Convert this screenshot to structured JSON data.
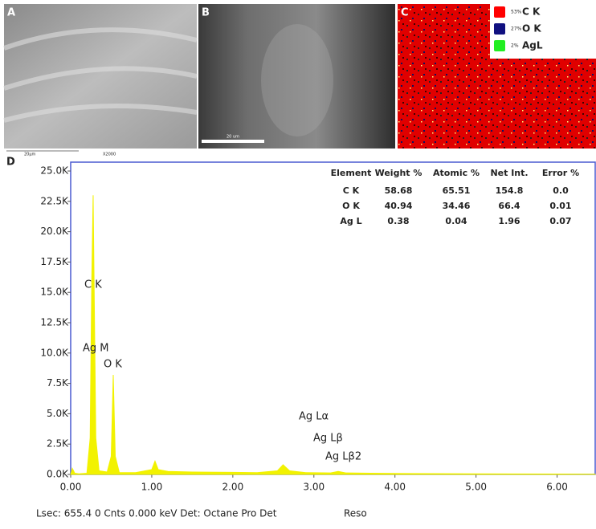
{
  "panels": {
    "a": "A",
    "b": "B",
    "c": "C",
    "d": "D"
  },
  "panel_a": {
    "scale": "20μm",
    "mag": "X2000"
  },
  "panel_b": {
    "scale": "20 um"
  },
  "panel_c": {
    "legend": [
      {
        "percent": "53%",
        "label": "C K",
        "color": "#ff0000"
      },
      {
        "percent": "27%",
        "label": "O K",
        "color": "#101080"
      },
      {
        "percent": "2%",
        "label": "AgL",
        "color": "#22ee22"
      }
    ]
  },
  "table": {
    "header": [
      "Element",
      "Weight %",
      "Atomic %",
      "Net Int.",
      "Error %"
    ],
    "rows": [
      [
        "C K",
        "58.68",
        "65.51",
        "154.8",
        "0.0"
      ],
      [
        "O K",
        "40.94",
        "34.46",
        "66.4",
        "0.01"
      ],
      [
        "Ag L",
        "0.38",
        "0.04",
        "1.96",
        "0.07"
      ]
    ]
  },
  "footer": {
    "left": "Lsec: 655.4 0 Cnts  0.000 keV Det: Octane Pro Det",
    "right": "Reso"
  },
  "chart_data": {
    "type": "area",
    "x": [
      0,
      0.02,
      0.05,
      0.1,
      0.2,
      0.24,
      0.26,
      0.277,
      0.29,
      0.31,
      0.35,
      0.45,
      0.5,
      0.525,
      0.55,
      0.6,
      0.8,
      1.0,
      1.04,
      1.08,
      1.2,
      1.5,
      1.8,
      2.0,
      2.3,
      2.55,
      2.62,
      2.7,
      2.9,
      3.2,
      3.3,
      3.4,
      3.7,
      4.0,
      5.0,
      6.0,
      6.47
    ],
    "series": [
      {
        "color": "#f2f200",
        "values": [
          0,
          500,
          100,
          50,
          100,
          3000,
          16000,
          23000,
          15000,
          3000,
          300,
          200,
          1500,
          8200,
          1500,
          150,
          150,
          400,
          1100,
          400,
          250,
          200,
          180,
          170,
          150,
          300,
          800,
          300,
          150,
          120,
          250,
          120,
          100,
          80,
          50,
          30,
          20
        ]
      }
    ],
    "xlim": [
      0,
      6.47
    ],
    "ylim": [
      0,
      25730
    ],
    "xticks": [
      {
        "value": 0,
        "label": "0.00"
      },
      {
        "value": 1,
        "label": "1.00"
      },
      {
        "value": 2,
        "label": "2.00"
      },
      {
        "value": 3,
        "label": "3.00"
      },
      {
        "value": 4,
        "label": "4.00"
      },
      {
        "value": 5,
        "label": "5.00"
      },
      {
        "value": 6,
        "label": "6.00"
      }
    ],
    "yticks": [
      {
        "value": 0,
        "label": "0.0K"
      },
      {
        "value": 2500,
        "label": "2.5K"
      },
      {
        "value": 5000,
        "label": "5.0K"
      },
      {
        "value": 7500,
        "label": "7.5K"
      },
      {
        "value": 10000,
        "label": "10.0K"
      },
      {
        "value": 12500,
        "label": "12.5K"
      },
      {
        "value": 15000,
        "label": "15.0K"
      },
      {
        "value": 17500,
        "label": "17.5K"
      },
      {
        "value": 20000,
        "label": "20.0K"
      },
      {
        "value": 22500,
        "label": "22.5K"
      },
      {
        "value": 25000,
        "label": "25.0K"
      }
    ],
    "annotations": [
      "C  K",
      "Ag M",
      "O  K",
      "Ag Lα",
      "Ag Lβ",
      "Ag Lβ2"
    ]
  }
}
